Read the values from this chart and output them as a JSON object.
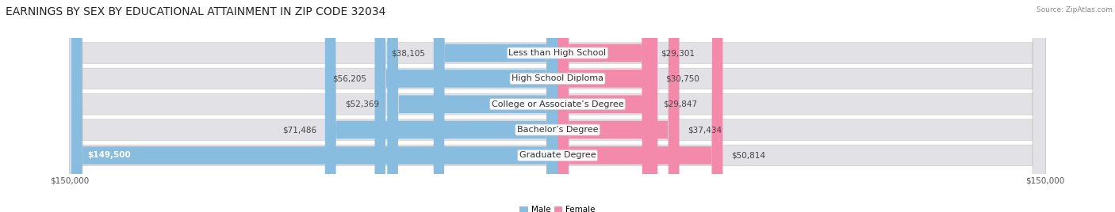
{
  "title": "EARNINGS BY SEX BY EDUCATIONAL ATTAINMENT IN ZIP CODE 32034",
  "source": "Source: ZipAtlas.com",
  "categories": [
    "Less than High School",
    "High School Diploma",
    "College or Associate’s Degree",
    "Bachelor’s Degree",
    "Graduate Degree"
  ],
  "male_values": [
    38105,
    56205,
    52369,
    71486,
    149500
  ],
  "female_values": [
    29301,
    30750,
    29847,
    37434,
    50814
  ],
  "male_color": "#89bde0",
  "female_color": "#f48aab",
  "male_label": "Male",
  "female_label": "Female",
  "max_value": 150000,
  "background_color": "#ffffff",
  "bar_bg_color": "#e2e2e6",
  "title_fontsize": 10,
  "label_fontsize": 8,
  "value_fontsize": 7.5
}
